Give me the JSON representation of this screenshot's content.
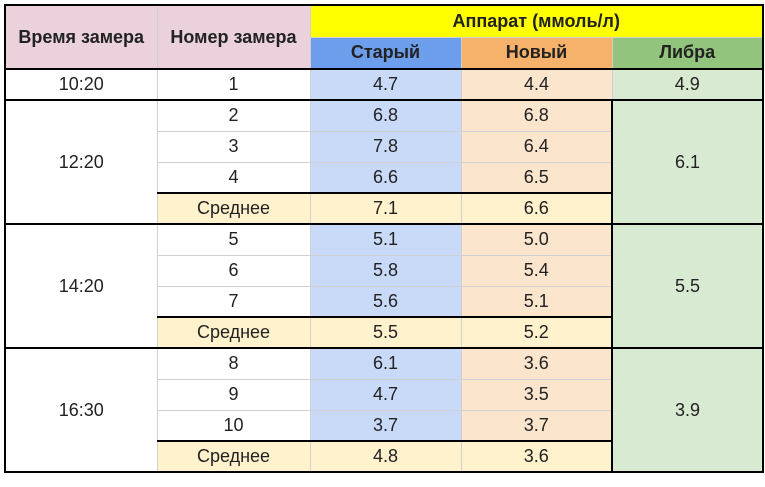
{
  "header": {
    "col_time": "Время замера",
    "col_number": "Номер замера",
    "group": "Аппарат (ммоль/л)",
    "col_old": "Старый",
    "col_new": "Новый",
    "col_libra": "Либра"
  },
  "avg_label": "Среднее",
  "groups": [
    {
      "time": "10:20",
      "libra": "4.9",
      "rows": [
        {
          "n": "1",
          "old": "4.7",
          "new": "4.4"
        }
      ]
    },
    {
      "time": "12:20",
      "libra": "6.1",
      "rows": [
        {
          "n": "2",
          "old": "6.8",
          "new": "6.8"
        },
        {
          "n": "3",
          "old": "7.8",
          "new": "6.4"
        },
        {
          "n": "4",
          "old": "6.6",
          "new": "6.5"
        }
      ],
      "avg": {
        "old": "7.1",
        "new": "6.6"
      }
    },
    {
      "time": "14:20",
      "libra": "5.5",
      "rows": [
        {
          "n": "5",
          "old": "5.1",
          "new": "5.0"
        },
        {
          "n": "6",
          "old": "5.8",
          "new": "5.4"
        },
        {
          "n": "7",
          "old": "5.6",
          "new": "5.1"
        }
      ],
      "avg": {
        "old": "5.5",
        "new": "5.2"
      }
    },
    {
      "time": "16:30",
      "libra": "3.9",
      "rows": [
        {
          "n": "8",
          "old": "6.1",
          "new": "3.6"
        },
        {
          "n": "9",
          "old": "4.7",
          "new": "3.5"
        },
        {
          "n": "10",
          "old": "3.7",
          "new": "3.7"
        }
      ],
      "avg": {
        "old": "4.8",
        "new": "3.6"
      }
    }
  ],
  "colors": {
    "header_pink": "#ead1dc",
    "header_yellow": "#ffff00",
    "header_blue": "#6d9eeb",
    "header_orange": "#f6b26b",
    "header_green": "#93c47d",
    "cell_blue": "#c9daf8",
    "cell_orange": "#fce5cd",
    "cell_green": "#d9ead3",
    "cell_cream": "#fff2cc"
  }
}
